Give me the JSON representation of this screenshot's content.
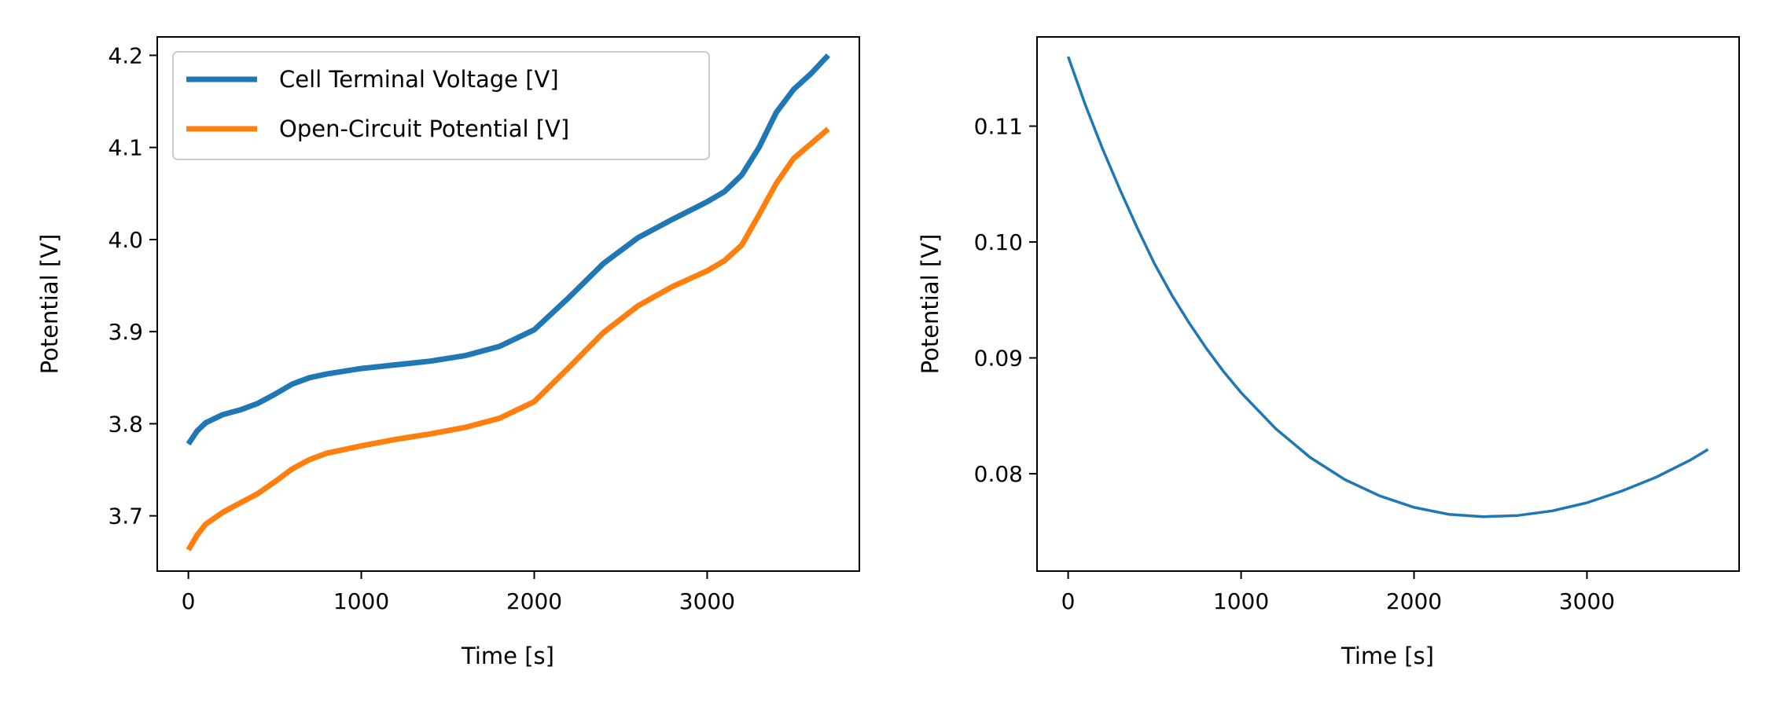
{
  "chart_data": [
    {
      "type": "line",
      "xlabel": "Time [s]",
      "ylabel": "Potential [V]",
      "xlim": [
        -180,
        3880
      ],
      "ylim": [
        3.64,
        4.22
      ],
      "xticks": [
        0,
        1000,
        2000,
        3000
      ],
      "xtick_labels": [
        "0",
        "1000",
        "2000",
        "3000"
      ],
      "yticks": [
        3.7,
        3.8,
        3.9,
        4.0,
        4.1,
        4.2
      ],
      "ytick_labels": [
        "3.7",
        "3.8",
        "3.9",
        "4.0",
        "4.1",
        "4.2"
      ],
      "grid": false,
      "legend": "upper left",
      "series": [
        {
          "name": "Cell Terminal Voltage [V]",
          "color": "#1f77b4",
          "x": [
            0,
            50,
            100,
            200,
            300,
            400,
            500,
            600,
            700,
            800,
            1000,
            1200,
            1400,
            1600,
            1800,
            2000,
            2200,
            2400,
            2600,
            2800,
            3000,
            3100,
            3200,
            3300,
            3400,
            3500,
            3600,
            3700
          ],
          "y": [
            3.778,
            3.792,
            3.801,
            3.81,
            3.815,
            3.822,
            3.832,
            3.843,
            3.85,
            3.854,
            3.86,
            3.864,
            3.868,
            3.874,
            3.884,
            3.902,
            3.937,
            3.974,
            4.002,
            4.022,
            4.041,
            4.052,
            4.07,
            4.1,
            4.138,
            4.163,
            4.18,
            4.2
          ]
        },
        {
          "name": "Open-Circuit Potential [V]",
          "color": "#ff7f0e",
          "x": [
            0,
            50,
            100,
            200,
            300,
            400,
            500,
            600,
            700,
            800,
            1000,
            1200,
            1400,
            1600,
            1800,
            2000,
            2200,
            2400,
            2600,
            2800,
            3000,
            3100,
            3200,
            3300,
            3400,
            3500,
            3600,
            3700
          ],
          "y": [
            3.663,
            3.679,
            3.691,
            3.704,
            3.714,
            3.724,
            3.737,
            3.751,
            3.761,
            3.768,
            3.776,
            3.783,
            3.789,
            3.796,
            3.806,
            3.824,
            3.861,
            3.899,
            3.928,
            3.949,
            3.966,
            3.977,
            3.994,
            4.027,
            4.061,
            4.088,
            4.104,
            4.12
          ]
        }
      ]
    },
    {
      "type": "line",
      "xlabel": "Time [s]",
      "ylabel": "Potential [V]",
      "xlim": [
        -180,
        3880
      ],
      "ylim": [
        0.0716,
        0.1177
      ],
      "xticks": [
        0,
        1000,
        2000,
        3000
      ],
      "xtick_labels": [
        "0",
        "1000",
        "2000",
        "3000"
      ],
      "yticks": [
        0.08,
        0.09,
        0.1,
        0.11
      ],
      "ytick_labels": [
        "0.08",
        "0.09",
        "0.10",
        "0.11"
      ],
      "grid": false,
      "series": [
        {
          "color": "#1f77b4",
          "x": [
            0,
            100,
            200,
            300,
            400,
            500,
            600,
            700,
            800,
            900,
            1000,
            1200,
            1400,
            1600,
            1800,
            2000,
            2200,
            2400,
            2600,
            2800,
            3000,
            3200,
            3400,
            3600,
            3700
          ],
          "y": [
            0.116,
            0.1118,
            0.108,
            0.1045,
            0.1012,
            0.0981,
            0.0954,
            0.093,
            0.0908,
            0.0888,
            0.087,
            0.0839,
            0.0814,
            0.0795,
            0.0781,
            0.0771,
            0.0765,
            0.0763,
            0.0764,
            0.0768,
            0.0775,
            0.0785,
            0.0797,
            0.0812,
            0.0821
          ]
        }
      ]
    }
  ]
}
